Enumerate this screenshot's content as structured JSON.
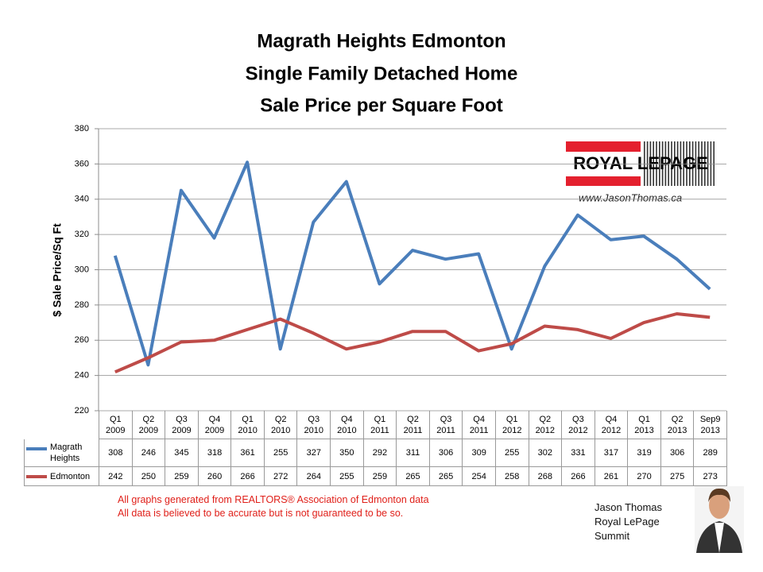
{
  "chart_data": {
    "type": "line",
    "title": [
      "Magrath Heights Edmonton",
      "Single Family Detached Home",
      "Sale Price per Square Foot"
    ],
    "y_label": "$ Sale Price/Sq Ft",
    "categories": [
      "Q1\n2009",
      "Q2\n2009",
      "Q3\n2009",
      "Q4\n2009",
      "Q1\n2010",
      "Q2\n2010",
      "Q3\n2010",
      "Q4\n2010",
      "Q1\n2011",
      "Q2\n2011",
      "Q3\n2011",
      "Q4\n2011",
      "Q1\n2012",
      "Q2\n2012",
      "Q3\n2012",
      "Q4\n2012",
      "Q1\n2013",
      "Q2\n2013",
      "Sep9\n2013"
    ],
    "series": [
      {
        "name": "Magrath Heights",
        "color": "#4a7ebb",
        "values": [
          308,
          246,
          345,
          318,
          361,
          255,
          327,
          350,
          292,
          311,
          306,
          309,
          255,
          302,
          331,
          317,
          319,
          306,
          289
        ]
      },
      {
        "name": "Edmonton",
        "color": "#be4b48",
        "values": [
          242,
          250,
          259,
          260,
          266,
          272,
          264,
          255,
          259,
          265,
          265,
          254,
          258,
          268,
          266,
          261,
          270,
          275,
          273
        ]
      }
    ],
    "ylim": [
      220,
      380
    ],
    "yticks": [
      220,
      240,
      260,
      280,
      300,
      320,
      340,
      360,
      380
    ],
    "grid": true
  },
  "logo": {
    "brand": "ROYAL LEPAGE",
    "url": "www.JasonThomas.ca"
  },
  "footnote": [
    "All graphs generated from REALTORS® Association of Edmonton data",
    "All data is believed to be accurate but is not guaranteed to be so."
  ],
  "agent": [
    "Jason Thomas",
    "Royal LePage",
    "Summit"
  ]
}
